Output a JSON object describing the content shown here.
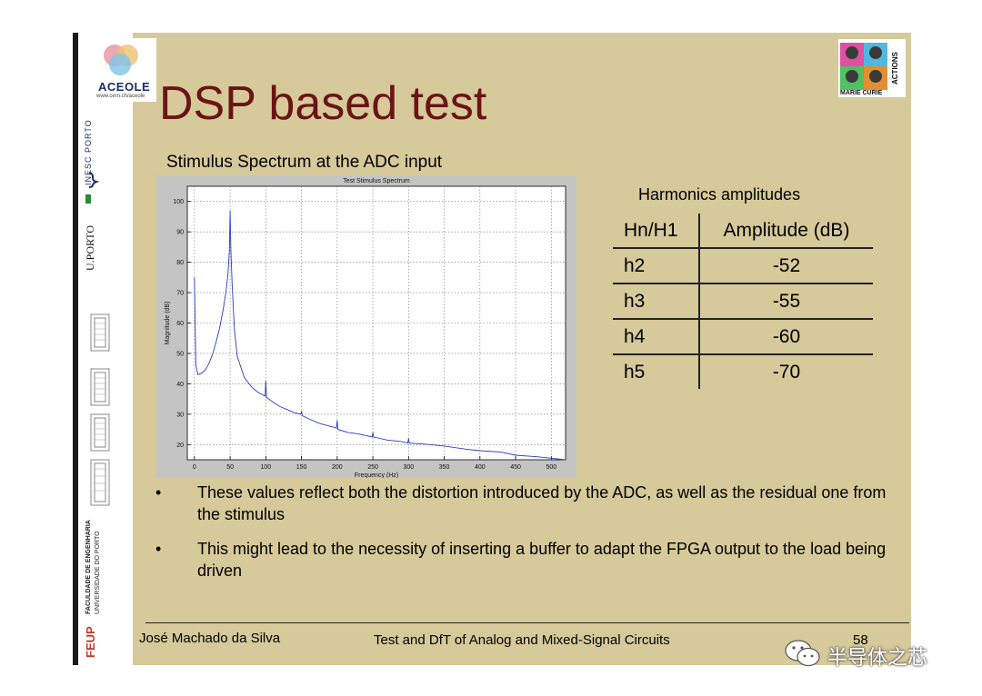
{
  "slide": {
    "title": "DSP based test",
    "subtitle": "Stimulus Spectrum at the ADC input"
  },
  "sidebar": {
    "logo_text": "ACEOLE",
    "logo_url": "www.cern.ch/aceole",
    "inesc": "INESC PORTO",
    "uporto": "U.PORTO",
    "faculdade": "FACULDADE DE ENGENHARIA",
    "universidade": "UNIVERSIDADE DO PORTO",
    "feup": "FEUP"
  },
  "marie_curie": {
    "line1": "MARIE CURIE",
    "line2": "ACTIONS"
  },
  "chart_data": {
    "type": "line",
    "title": "Test Stimulus Spectrum",
    "xlabel": "Frequency (Hz)",
    "ylabel": "Magnitude (dB)",
    "xlim": [
      -10,
      520
    ],
    "ylim": [
      15,
      105
    ],
    "xticks": [
      0,
      50,
      100,
      150,
      200,
      250,
      300,
      350,
      400,
      450,
      500
    ],
    "yticks": [
      20,
      30,
      40,
      50,
      60,
      70,
      80,
      90,
      100
    ],
    "grid": true,
    "color": "#2a3cc8",
    "series": [
      {
        "x": [
          0,
          2,
          5,
          10,
          15,
          20,
          25,
          30,
          35,
          40,
          44,
          47,
          49,
          50,
          51,
          53,
          56,
          60,
          70,
          80,
          90,
          99,
          100,
          101,
          110,
          120,
          130,
          140,
          149,
          150,
          151,
          160,
          175,
          190,
          199,
          200,
          201,
          215,
          230,
          249,
          250,
          251,
          270,
          290,
          299,
          300,
          301,
          330,
          350,
          380,
          400,
          430,
          450,
          480,
          500,
          520
        ],
        "y": [
          75,
          46,
          43,
          43.5,
          44.5,
          46.5,
          49.5,
          53.5,
          58,
          64,
          70,
          76,
          84,
          97,
          84,
          72,
          58,
          49,
          42,
          39,
          37,
          36,
          41,
          35.5,
          34,
          32.5,
          31.5,
          30.5,
          30,
          31,
          29.5,
          28.5,
          27,
          26,
          25.5,
          28,
          25,
          24,
          23.5,
          22.5,
          24,
          22.5,
          21.5,
          21,
          20.5,
          22,
          20.5,
          20,
          19.5,
          18.5,
          18,
          17.5,
          16.5,
          16,
          15.5,
          15
        ]
      }
    ]
  },
  "table": {
    "caption": "Harmonics amplitudes",
    "headers": [
      "Hn/H1",
      "Amplitude (dB)"
    ],
    "rows": [
      {
        "h": "h2",
        "amp": "-52"
      },
      {
        "h": "h3",
        "amp": "-55"
      },
      {
        "h": "h4",
        "amp": "-60"
      },
      {
        "h": "h5",
        "amp": "-70"
      }
    ]
  },
  "bullets": [
    "These values reflect both the distortion introduced by the ADC, as well as the residual one from the stimulus",
    "This might lead to the necessity of inserting a buffer to adapt the FPGA output to the load being driven"
  ],
  "bullet_symbol": "•",
  "footer": {
    "author": "José Machado da Silva",
    "course": "Test and DfT of Analog and Mixed-Signal Circuits",
    "page": "58"
  },
  "watermark": {
    "text": "半导体之芯"
  }
}
